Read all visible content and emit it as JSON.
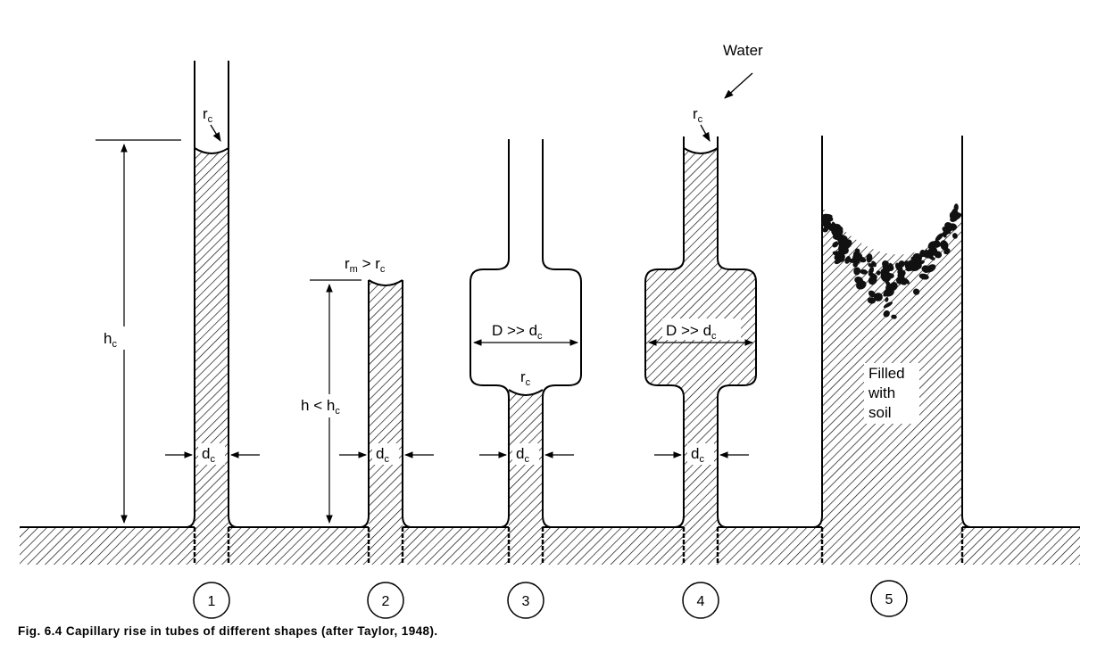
{
  "labels": {
    "water": "Water",
    "r": "r",
    "c": "c",
    "m": "m",
    "h": "h",
    "d": "d",
    "rm_gt_rc": " > r",
    "h_lt_hc": " < h",
    "D_gt_dc": "D >> d",
    "soil_line1": "Filled",
    "soil_line2": "with",
    "soil_line3": "soil"
  },
  "tubes": [
    {
      "number": "1"
    },
    {
      "number": "2"
    },
    {
      "number": "3"
    },
    {
      "number": "4"
    },
    {
      "number": "5"
    }
  ],
  "caption": "Fig. 6.4  Capillary rise in tubes of different shapes (after Taylor, 1948)."
}
